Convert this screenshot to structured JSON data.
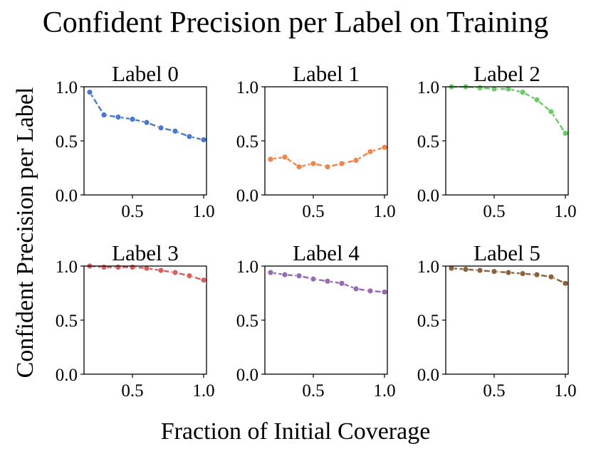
{
  "chart_data": {
    "type": "line",
    "title": "Confident Precision per Label on Training",
    "xlabel": "Fraction of Initial Coverage",
    "ylabel": "Confident Precision per Label",
    "xlim": [
      0.16,
      1.02
    ],
    "ylim": [
      0.0,
      1.0
    ],
    "xticks": [
      "0.5",
      "1.0"
    ],
    "yticks": [
      "0.0",
      "0.5",
      "1.0"
    ],
    "grid": false,
    "x": [
      0.2,
      0.3,
      0.4,
      0.5,
      0.6,
      0.7,
      0.8,
      0.9,
      1.0
    ],
    "panels": [
      {
        "title": "Label 0",
        "color": "#4878d0",
        "values": [
          0.95,
          0.74,
          0.72,
          0.7,
          0.67,
          0.62,
          0.59,
          0.54,
          0.51
        ]
      },
      {
        "title": "Label 1",
        "color": "#ee854a",
        "values": [
          0.33,
          0.35,
          0.26,
          0.29,
          0.26,
          0.29,
          0.32,
          0.4,
          0.44
        ]
      },
      {
        "title": "Label 2",
        "color": "#6acc64",
        "values": [
          1.0,
          1.0,
          0.99,
          0.98,
          0.98,
          0.95,
          0.88,
          0.77,
          0.57
        ]
      },
      {
        "title": "Label 3",
        "color": "#d65f5f",
        "values": [
          1.0,
          0.99,
          0.99,
          0.99,
          0.98,
          0.96,
          0.94,
          0.91,
          0.87
        ]
      },
      {
        "title": "Label 4",
        "color": "#956cb4",
        "values": [
          0.94,
          0.92,
          0.91,
          0.88,
          0.86,
          0.84,
          0.79,
          0.77,
          0.76
        ]
      },
      {
        "title": "Label 5",
        "color": "#8c613c",
        "values": [
          0.98,
          0.97,
          0.96,
          0.95,
          0.94,
          0.93,
          0.92,
          0.9,
          0.84
        ]
      }
    ]
  }
}
